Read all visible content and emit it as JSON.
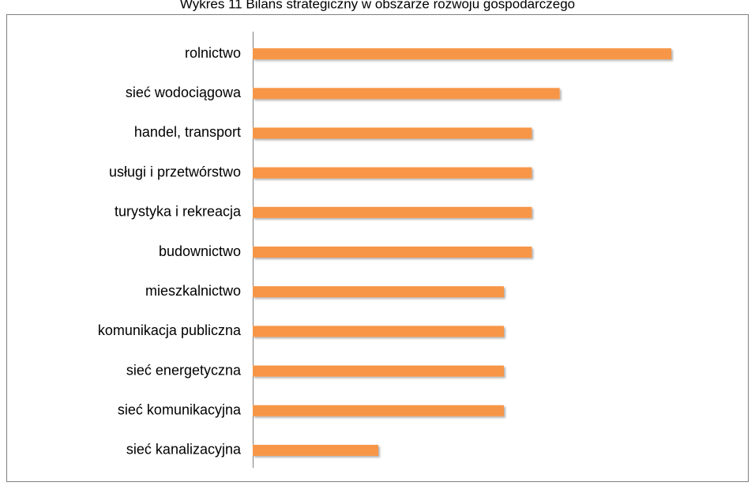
{
  "chart_data": {
    "type": "bar",
    "orientation": "horizontal",
    "title": "Wykres 11 Bilans strategiczny w obszarze rozwoju gospodarczego",
    "categories": [
      "rolnictwo",
      "sieć wodociągowa",
      "handel, transport",
      "usługi i przetwórstwo",
      "turystyka i rekreacja",
      "budownictwo",
      "mieszkalnictwo",
      "komunikacja publiczna",
      "sieć energetyczna",
      "sieć komunikacyjna",
      "sieć kanalizacyjna"
    ],
    "values": [
      15,
      11,
      10,
      10,
      10,
      10,
      9,
      9,
      9,
      9,
      4.5
    ],
    "color": "#f79646",
    "xlim": [
      0,
      15
    ]
  }
}
